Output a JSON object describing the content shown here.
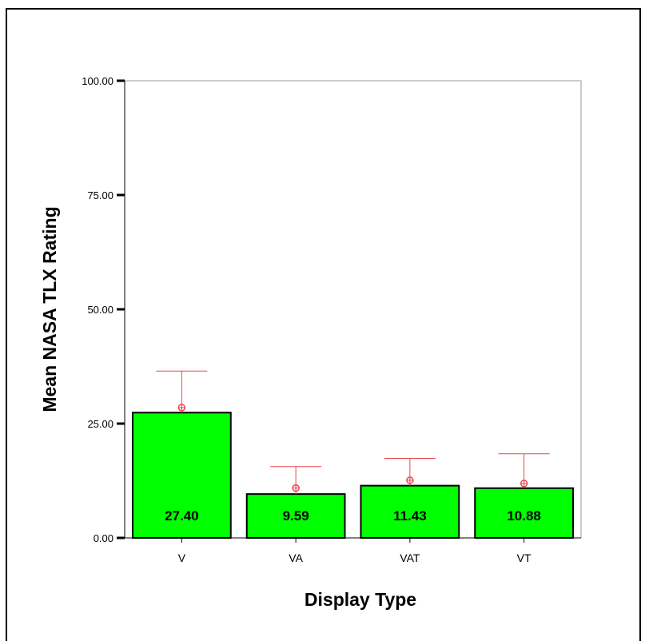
{
  "chart_data": {
    "type": "bar",
    "categories": [
      "V",
      "VA",
      "VAT",
      "VT"
    ],
    "values": [
      27.4,
      9.59,
      11.43,
      10.88
    ],
    "value_labels": [
      "27.40",
      "9.59",
      "11.43",
      "10.88"
    ],
    "error_bar_upper": [
      36.5,
      15.6,
      17.4,
      18.4
    ],
    "marker_values": [
      28.5,
      10.9,
      12.6,
      11.9
    ],
    "xlabel": "Display Type",
    "ylabel": "Mean NASA TLX Rating",
    "ylim": [
      0,
      100
    ],
    "yticks": [
      0,
      25,
      50,
      75,
      100
    ],
    "ytick_labels": [
      "0.00",
      "25.00",
      "50.00",
      "75.00",
      "100.00"
    ],
    "grid": false,
    "colors": {
      "bar_fill": "#00ff00",
      "bar_stroke": "#000000",
      "error_bar": "#e8474f",
      "marker": "#e8474f"
    }
  }
}
